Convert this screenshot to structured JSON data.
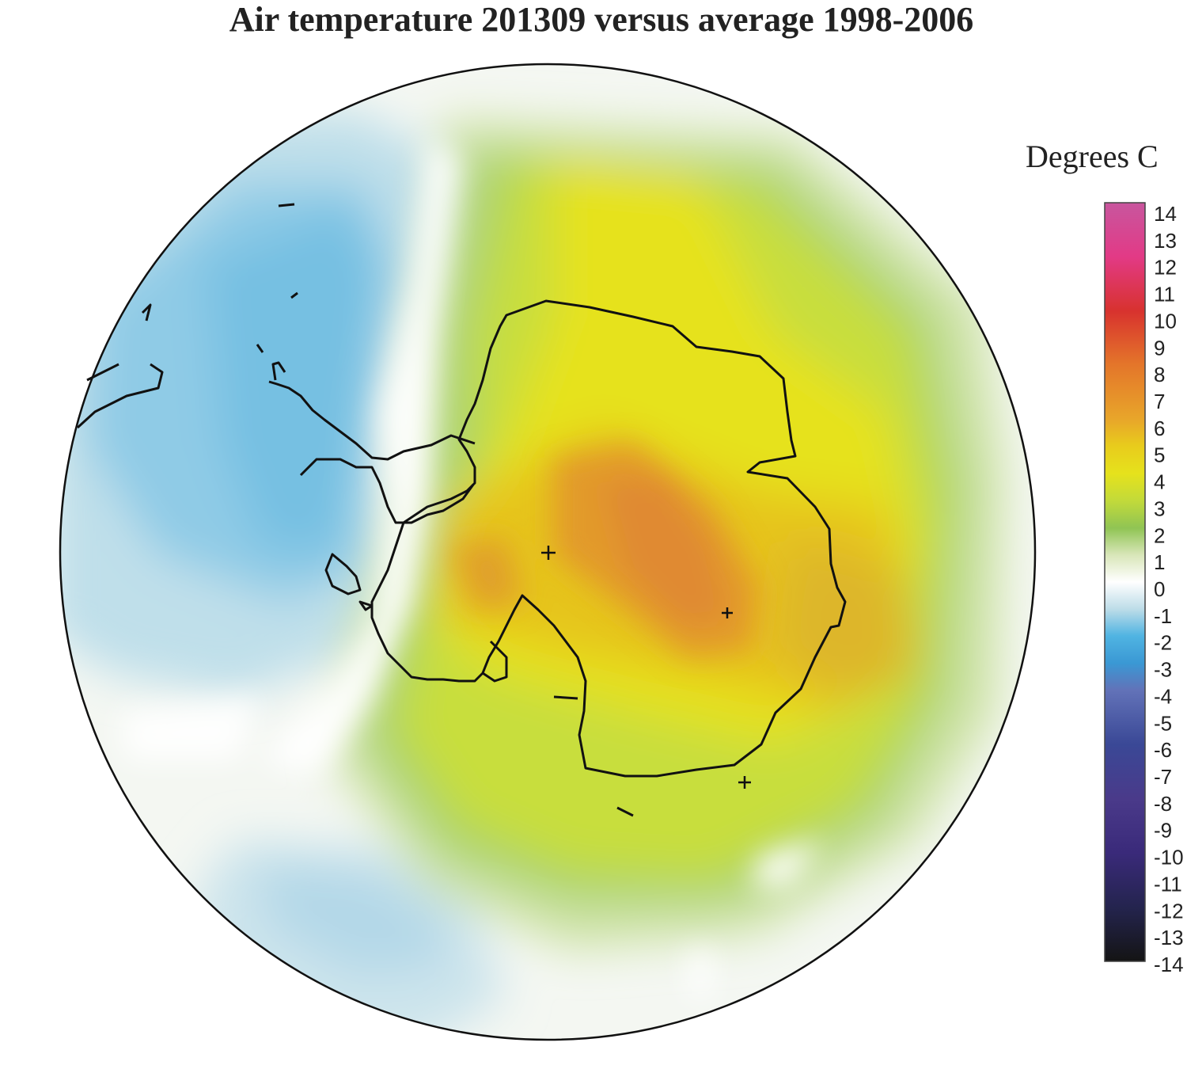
{
  "title": "Air temperature 201309 versus average 1998-2006",
  "legend": {
    "title": "Degrees C",
    "ticks": [
      "14",
      "13",
      "12",
      "11",
      "10",
      "9",
      "8",
      "7",
      "6",
      "5",
      "4",
      "3",
      "2",
      "1",
      "0",
      "-1",
      "-2",
      "-3",
      "-4",
      "-5",
      "-6",
      "-7",
      "-8",
      "-9",
      "-10",
      "-11",
      "-12",
      "-13",
      "-14"
    ],
    "range": [
      -14,
      14
    ],
    "colors": {
      "14": "#c8569e",
      "12": "#e23a86",
      "10": "#d8322e",
      "8": "#e4762a",
      "6": "#e8a62a",
      "5": "#e8cc1c",
      "4": "#e6e21c",
      "3": "#c2da3a",
      "2": "#90c454",
      "1": "#d8e6b8",
      "0": "#ffffff",
      "-1": "#bcdce8",
      "-2": "#50b4e2",
      "-3": "#3a98d4",
      "-4": "#6272b8",
      "-6": "#3a4896",
      "-8": "#4a3a8a",
      "-10": "#3a2a7a",
      "-12": "#24244e",
      "-14": "#141414"
    }
  },
  "map": {
    "projection": "south polar stereographic",
    "station_markers": 3,
    "anomaly_regions": [
      {
        "name": "weddell-cold",
        "value": -1.5
      },
      {
        "name": "pacific-cold",
        "value": -1
      },
      {
        "name": "east-antarctic-warm",
        "value": 5
      },
      {
        "name": "plateau-warm-peak",
        "value": 6.5
      },
      {
        "name": "ross-warm",
        "value": 3.5
      }
    ]
  }
}
